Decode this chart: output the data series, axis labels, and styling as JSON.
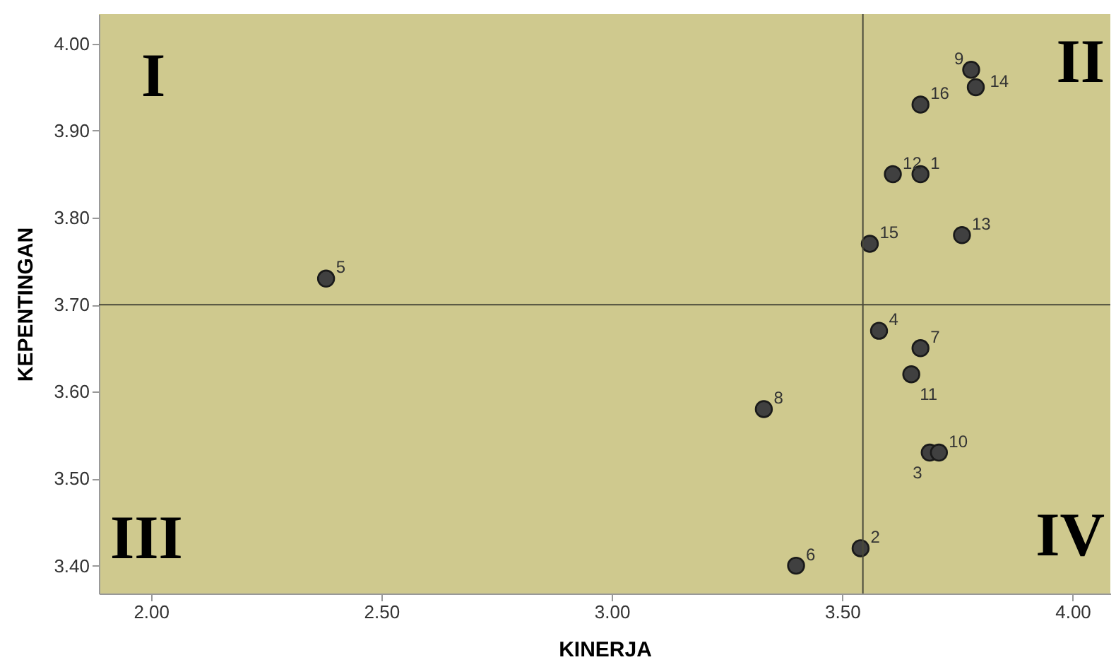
{
  "chart_data": {
    "type": "scatter",
    "xlabel": "KINERJA",
    "ylabel": "KEPENTINGAN",
    "x": [
      3.67,
      3.54,
      3.69,
      3.58,
      2.38,
      3.4,
      3.67,
      3.33,
      3.78,
      3.71,
      3.65,
      3.61,
      3.76,
      3.79,
      3.56,
      3.67
    ],
    "series": [
      {
        "color": "#404040",
        "values": [
          3.85,
          3.42,
          3.53,
          3.67,
          3.73,
          3.4,
          3.65,
          3.58,
          3.97,
          3.53,
          3.62,
          3.85,
          3.78,
          3.95,
          3.77,
          3.93
        ]
      }
    ],
    "xlim": [
      1.887,
      4.082
    ],
    "ylim": [
      3.368,
      4.034
    ],
    "xticks": [
      {
        "value": 2,
        "label": "2.00"
      },
      {
        "value": 2.5,
        "label": "2.50"
      },
      {
        "value": 3,
        "label": "3.00"
      },
      {
        "value": 3.5,
        "label": "3.50"
      },
      {
        "value": 4,
        "label": "4.00"
      }
    ],
    "yticks": [
      {
        "value": 3.4,
        "label": "3.40"
      },
      {
        "value": 3.5,
        "label": "3.50"
      },
      {
        "value": 3.6,
        "label": "3.60"
      },
      {
        "value": 3.7,
        "label": "3.70"
      },
      {
        "value": 3.8,
        "label": "3.80"
      },
      {
        "value": 3.9,
        "label": "3.90"
      },
      {
        "value": 4,
        "label": "4.00"
      }
    ],
    "ref_lines": [
      {
        "axis": "x",
        "value": 3.545,
        "color": "#4a4a3a"
      },
      {
        "axis": "y",
        "value": 3.7,
        "color": "#4a4a3a"
      }
    ],
    "marker": "circle",
    "grid": false,
    "annotations": [
      "I",
      "II",
      "III",
      "IV",
      {
        "text": "1",
        "x": 3.67,
        "y": 3.85
      },
      {
        "text": "2",
        "x": 3.54,
        "y": 3.42
      },
      {
        "text": "3",
        "x": 3.69,
        "y": 3.53
      },
      {
        "text": "4",
        "x": 3.58,
        "y": 3.67
      },
      {
        "text": "5",
        "x": 2.38,
        "y": 3.73
      },
      {
        "text": "6",
        "x": 3.4,
        "y": 3.4
      },
      {
        "text": "7",
        "x": 3.67,
        "y": 3.65
      },
      {
        "text": "8",
        "x": 3.33,
        "y": 3.58
      },
      {
        "text": "9",
        "x": 3.78,
        "y": 3.97
      },
      {
        "text": "10",
        "x": 3.71,
        "y": 3.53
      },
      {
        "text": "11",
        "x": 3.65,
        "y": 3.62
      },
      {
        "text": "12",
        "x": 3.61,
        "y": 3.85
      },
      {
        "text": "13",
        "x": 3.76,
        "y": 3.78
      },
      {
        "text": "14",
        "x": 3.79,
        "y": 3.95
      },
      {
        "text": "15",
        "x": 3.56,
        "y": 3.77
      },
      {
        "text": "16",
        "x": 3.67,
        "y": 3.93
      }
    ]
  }
}
